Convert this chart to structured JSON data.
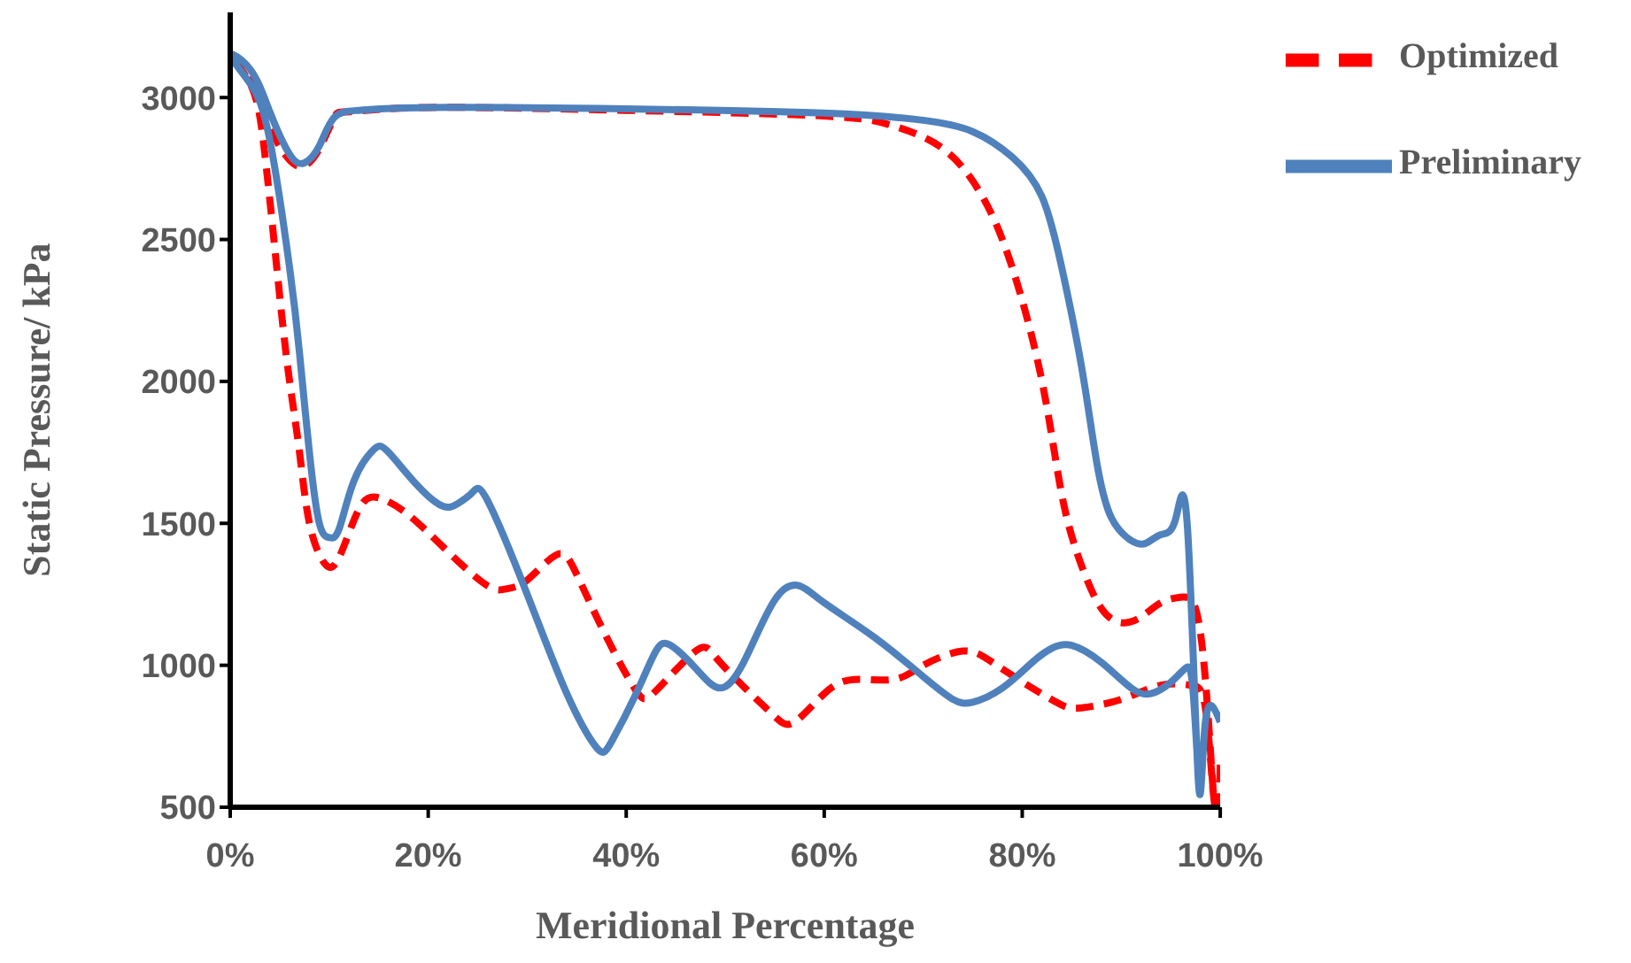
{
  "chart_data": {
    "type": "line",
    "xlabel": "Meridional Percentage",
    "ylabel": "Static Pressure/ kPa",
    "xlim": [
      0,
      100
    ],
    "xticks": [
      {
        "value": 0,
        "label": "0%"
      },
      {
        "value": 20,
        "label": "20%"
      },
      {
        "value": 40,
        "label": "40%"
      },
      {
        "value": 60,
        "label": "60%"
      },
      {
        "value": 80,
        "label": "80%"
      },
      {
        "value": 100,
        "label": "100%"
      }
    ],
    "ylim": [
      500,
      3300
    ],
    "yticks": [
      500,
      1000,
      1500,
      2000,
      2500,
      3000
    ],
    "grid": false,
    "legend": "top right",
    "marker": "none",
    "series": [
      {
        "name": "Optimized",
        "color": "#ff0000",
        "line_style": "dashed",
        "x": [
          100,
          99.8,
          99.3,
          98.5,
          97,
          94,
          90,
          86,
          84,
          81,
          77,
          74,
          70,
          67,
          63,
          60,
          57,
          55,
          52,
          49,
          47,
          43,
          41,
          38,
          35,
          33,
          30,
          28,
          26,
          22,
          18,
          15,
          13,
          11,
          9.5,
          8,
          7,
          6,
          5,
          3.5,
          2,
          0,
          2,
          4,
          6,
          7.5,
          9,
          10.5,
          12,
          20,
          40,
          60,
          67,
          72,
          76,
          79,
          82,
          84,
          86,
          88,
          90,
          92,
          94,
          96,
          97.5,
          98.5,
          99.2,
          99.5
        ],
        "values": [
          650,
          500,
          550,
          850,
          930,
          930,
          880,
          850,
          860,
          920,
          1010,
          1050,
          1000,
          950,
          950,
          900,
          800,
          820,
          920,
          1030,
          1050,
          910,
          910,
          1100,
          1320,
          1390,
          1300,
          1270,
          1280,
          1400,
          1530,
          1590,
          1550,
          1380,
          1360,
          1500,
          1750,
          2000,
          2300,
          2800,
          3050,
          3150,
          3080,
          2900,
          2780,
          2760,
          2820,
          2930,
          2950,
          2965,
          2955,
          2935,
          2900,
          2820,
          2650,
          2400,
          2000,
          1600,
          1350,
          1200,
          1150,
          1170,
          1220,
          1240,
          1200,
          950,
          600,
          500
        ]
      },
      {
        "name": "Preliminary",
        "color": "#4f81bd",
        "line_style": "solid",
        "x": [
          97.8,
          97.2,
          96.5,
          95,
          93,
          91,
          88,
          85,
          83,
          81,
          78,
          75,
          73,
          70,
          65,
          60,
          57.5,
          55,
          52,
          49.5,
          47,
          44.5,
          43,
          41,
          38.5,
          37,
          34,
          30,
          26,
          24.5,
          23,
          21.5,
          19,
          16,
          14.5,
          12.5,
          11,
          10,
          9,
          8,
          7,
          6,
          4,
          2,
          0,
          2,
          4,
          6,
          7.5,
          9,
          10.5,
          13,
          20,
          40,
          60,
          70,
          75,
          79,
          82,
          84,
          86,
          87.5,
          89,
          91,
          92.5,
          94,
          95.5,
          96.7,
          97.8,
          98.5,
          100
        ],
        "values": [
          600,
          930,
          990,
          940,
          900,
          920,
          1010,
          1070,
          1060,
          1010,
          920,
          870,
          880,
          960,
          1100,
          1220,
          1280,
          1230,
          1020,
          920,
          990,
          1070,
          1050,
          900,
          730,
          710,
          900,
          1250,
          1580,
          1610,
          1570,
          1560,
          1630,
          1750,
          1760,
          1650,
          1480,
          1450,
          1500,
          1750,
          2100,
          2400,
          2850,
          3050,
          3150,
          3100,
          2950,
          2800,
          2770,
          2830,
          2930,
          2955,
          2965,
          2960,
          2945,
          2920,
          2880,
          2790,
          2650,
          2400,
          2050,
          1720,
          1520,
          1440,
          1430,
          1460,
          1516,
          1480,
          587,
          800,
          800
        ]
      }
    ]
  }
}
